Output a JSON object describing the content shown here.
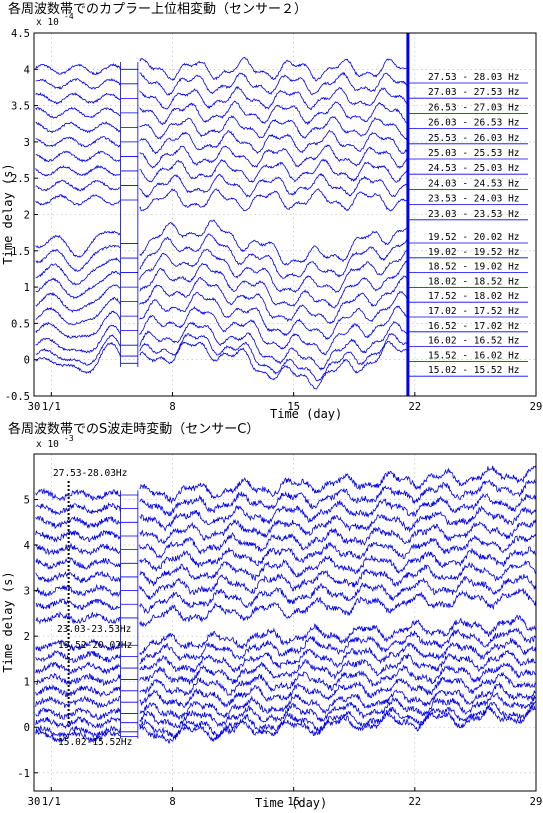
{
  "chart_data": [
    {
      "type": "line",
      "title": "各周波数帯でのカプラー上位相変動（センサー２）",
      "xlabel": "Time (day)",
      "ylabel": "Time delay (s)",
      "exponent_label": "x 10",
      "exponent": "-4",
      "x_tick_labels": [
        "30",
        "1/1",
        "8",
        "15",
        "22",
        "29"
      ],
      "x_ticks": [
        0,
        1,
        8,
        15,
        22,
        29
      ],
      "xlim": [
        0,
        29
      ],
      "y_tick_labels": [
        "-0.5",
        "0",
        "0.5",
        "1",
        "1.5",
        "2",
        "2.5",
        "3",
        "3.5",
        "4",
        "4.5"
      ],
      "ylim": [
        -0.5,
        4.5
      ],
      "grid": true,
      "legend_placement": "right",
      "band_labels": [
        "27.53 - 28.03 Hz",
        "27.03 - 27.53 Hz",
        "26.53 - 27.03 Hz",
        "26.03 - 26.53 Hz",
        "25.53 - 26.03 Hz",
        "25.03 - 25.53 Hz",
        "24.53 - 25.03 Hz",
        "24.03 - 24.53 Hz",
        "23.53 - 24.03 Hz",
        "23.03 - 23.53 Hz",
        "19.52 - 20.02 Hz",
        "19.02 - 19.52 Hz",
        "18.52 - 19.02 Hz",
        "18.02 - 18.52 Hz",
        "17.52 - 18.02 Hz",
        "17.02 - 17.52 Hz",
        "16.52 - 17.02 Hz",
        "16.02 - 16.52 Hz",
        "15.52 - 16.02 Hz",
        "15.02 - 15.52 Hz"
      ],
      "series_offsets_upper": [
        4.0,
        3.8,
        3.6,
        3.4,
        3.2,
        3.0,
        2.8,
        2.6,
        2.4,
        2.2
      ],
      "series_offsets_lower": [
        1.6,
        1.4,
        1.2,
        1.0,
        0.8,
        0.6,
        0.4,
        0.2,
        0.05,
        -0.05
      ],
      "gap_day": 5.0,
      "end_day": 21.6
    },
    {
      "type": "line",
      "title": "各周波数帯でのS波走時変動（センサーC）",
      "xlabel": "Time (day)",
      "ylabel": "Time delay (s)",
      "exponent_label": "x 10",
      "exponent": "-3",
      "x_tick_labels": [
        "30",
        "1/1",
        "8",
        "15",
        "22",
        "29"
      ],
      "x_ticks": [
        0,
        1,
        8,
        15,
        22,
        29
      ],
      "xlim": [
        0,
        29
      ],
      "y_tick_labels": [
        "-1",
        "0",
        "1",
        "2",
        "3",
        "4",
        "5"
      ],
      "ylim": [
        -1.4,
        6.0
      ],
      "grid": true,
      "annotations": [
        "27.53-28.03Hz",
        "23.03-23.53Hz",
        "19.52-20.02Hz",
        "15.02-15.52Hz"
      ],
      "marker_day": 2.0,
      "series_offsets_upper": [
        5.1,
        4.8,
        4.5,
        4.2,
        3.9,
        3.6,
        3.3,
        3.0,
        2.7,
        2.4
      ],
      "series_offsets_lower": [
        1.8,
        1.55,
        1.3,
        1.05,
        0.8,
        0.55,
        0.3,
        0.1,
        -0.1,
        -0.2
      ],
      "gap_day": 5.0
    }
  ]
}
